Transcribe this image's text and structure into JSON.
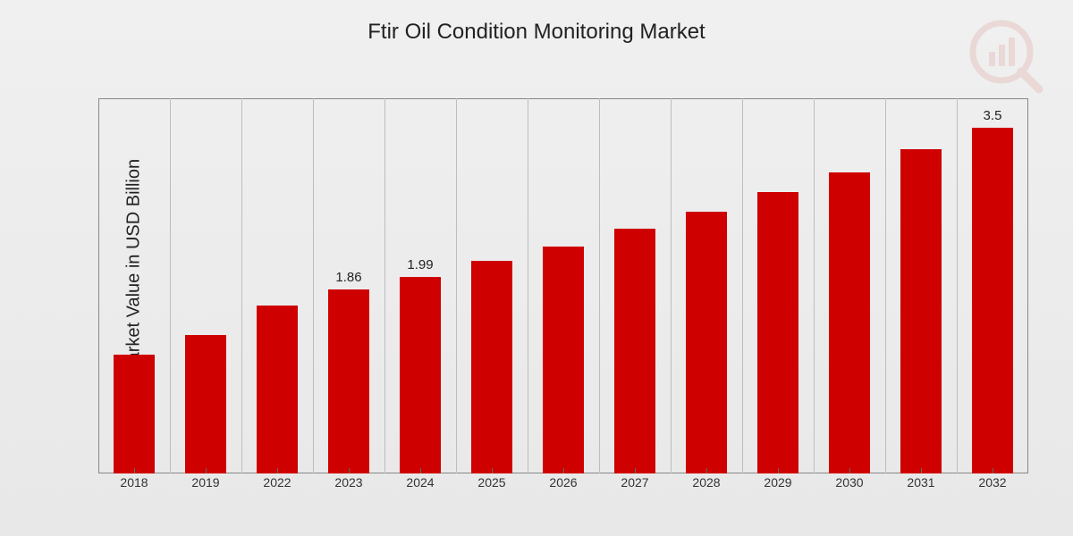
{
  "chart": {
    "type": "bar",
    "title": "Ftir Oil Condition Monitoring Market",
    "title_fontsize": 24,
    "ylabel": "Market Value in USD Billion",
    "ylabel_fontsize": 20,
    "categories": [
      "2018",
      "2019",
      "2022",
      "2023",
      "2024",
      "2025",
      "2026",
      "2027",
      "2028",
      "2029",
      "2030",
      "2031",
      "2032"
    ],
    "values": [
      1.2,
      1.4,
      1.7,
      1.86,
      1.99,
      2.15,
      2.3,
      2.48,
      2.65,
      2.85,
      3.05,
      3.28,
      3.5
    ],
    "value_labels": [
      "",
      "",
      "",
      "1.86",
      "1.99",
      "",
      "",
      "",
      "",
      "",
      "",
      "",
      "3.5"
    ],
    "ylim": [
      0,
      3.8
    ],
    "bar_color": "#cf0000",
    "background_gradient": [
      "#f0f0f0",
      "#e8e8e8"
    ],
    "grid_color": "#bdbdbd",
    "border_color": "#888888",
    "text_color": "#222222",
    "tick_fontsize": 14,
    "value_label_fontsize": 15,
    "bar_width_ratio": 0.58,
    "watermark_color": "#c0392b",
    "watermark_opacity": 0.12
  }
}
